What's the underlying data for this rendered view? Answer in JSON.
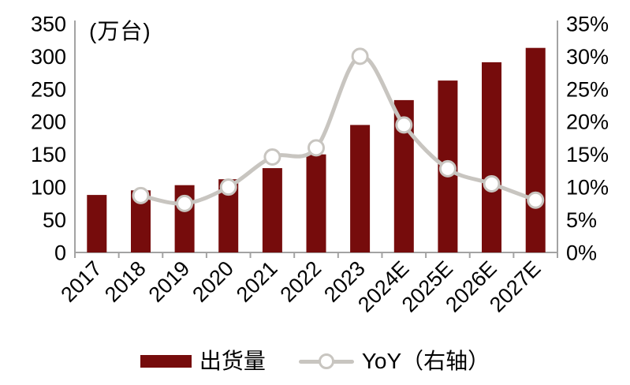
{
  "colors": {
    "background": "#FFFFFF",
    "bar": "#760C0C",
    "line": "#C8C5C0",
    "marker_fill": "#FFFFFF",
    "axis_line": "#A3A3A3",
    "text": "#000000"
  },
  "legend": {
    "items": [
      {
        "label": "出货量",
        "type": "bar"
      },
      {
        "label": "YoY（右轴）",
        "type": "line"
      }
    ]
  },
  "chart_data": {
    "type": "bar",
    "title": "",
    "unit_label": "(万台)",
    "categories": [
      "2017",
      "2018",
      "2019",
      "2020",
      "2021",
      "2022",
      "2023",
      "2024E",
      "2025E",
      "2026E",
      "2027E"
    ],
    "series": [
      {
        "name": "出货量",
        "type": "bar",
        "axis": "left",
        "values": [
          88,
          95,
          103,
          112,
          129,
          150,
          195,
          233,
          263,
          291,
          313
        ]
      },
      {
        "name": "YoY（右轴）",
        "type": "line",
        "axis": "right",
        "values": [
          null,
          8.7,
          7.5,
          10,
          14.6,
          16,
          30,
          19.5,
          12.8,
          10.5,
          8
        ]
      }
    ],
    "left_axis": {
      "min": 0,
      "max": 350,
      "step": 50,
      "tick_labels": [
        "350",
        "300",
        "250",
        "200",
        "150",
        "100",
        "50",
        "0"
      ]
    },
    "right_axis": {
      "min": 0,
      "max": 35,
      "step": 5,
      "tick_labels": [
        "35%",
        "30%",
        "25%",
        "20%",
        "15%",
        "10%",
        "5%",
        "0%"
      ]
    },
    "grid": false,
    "legend_position": "bottom",
    "x_label_rotation": -45
  }
}
